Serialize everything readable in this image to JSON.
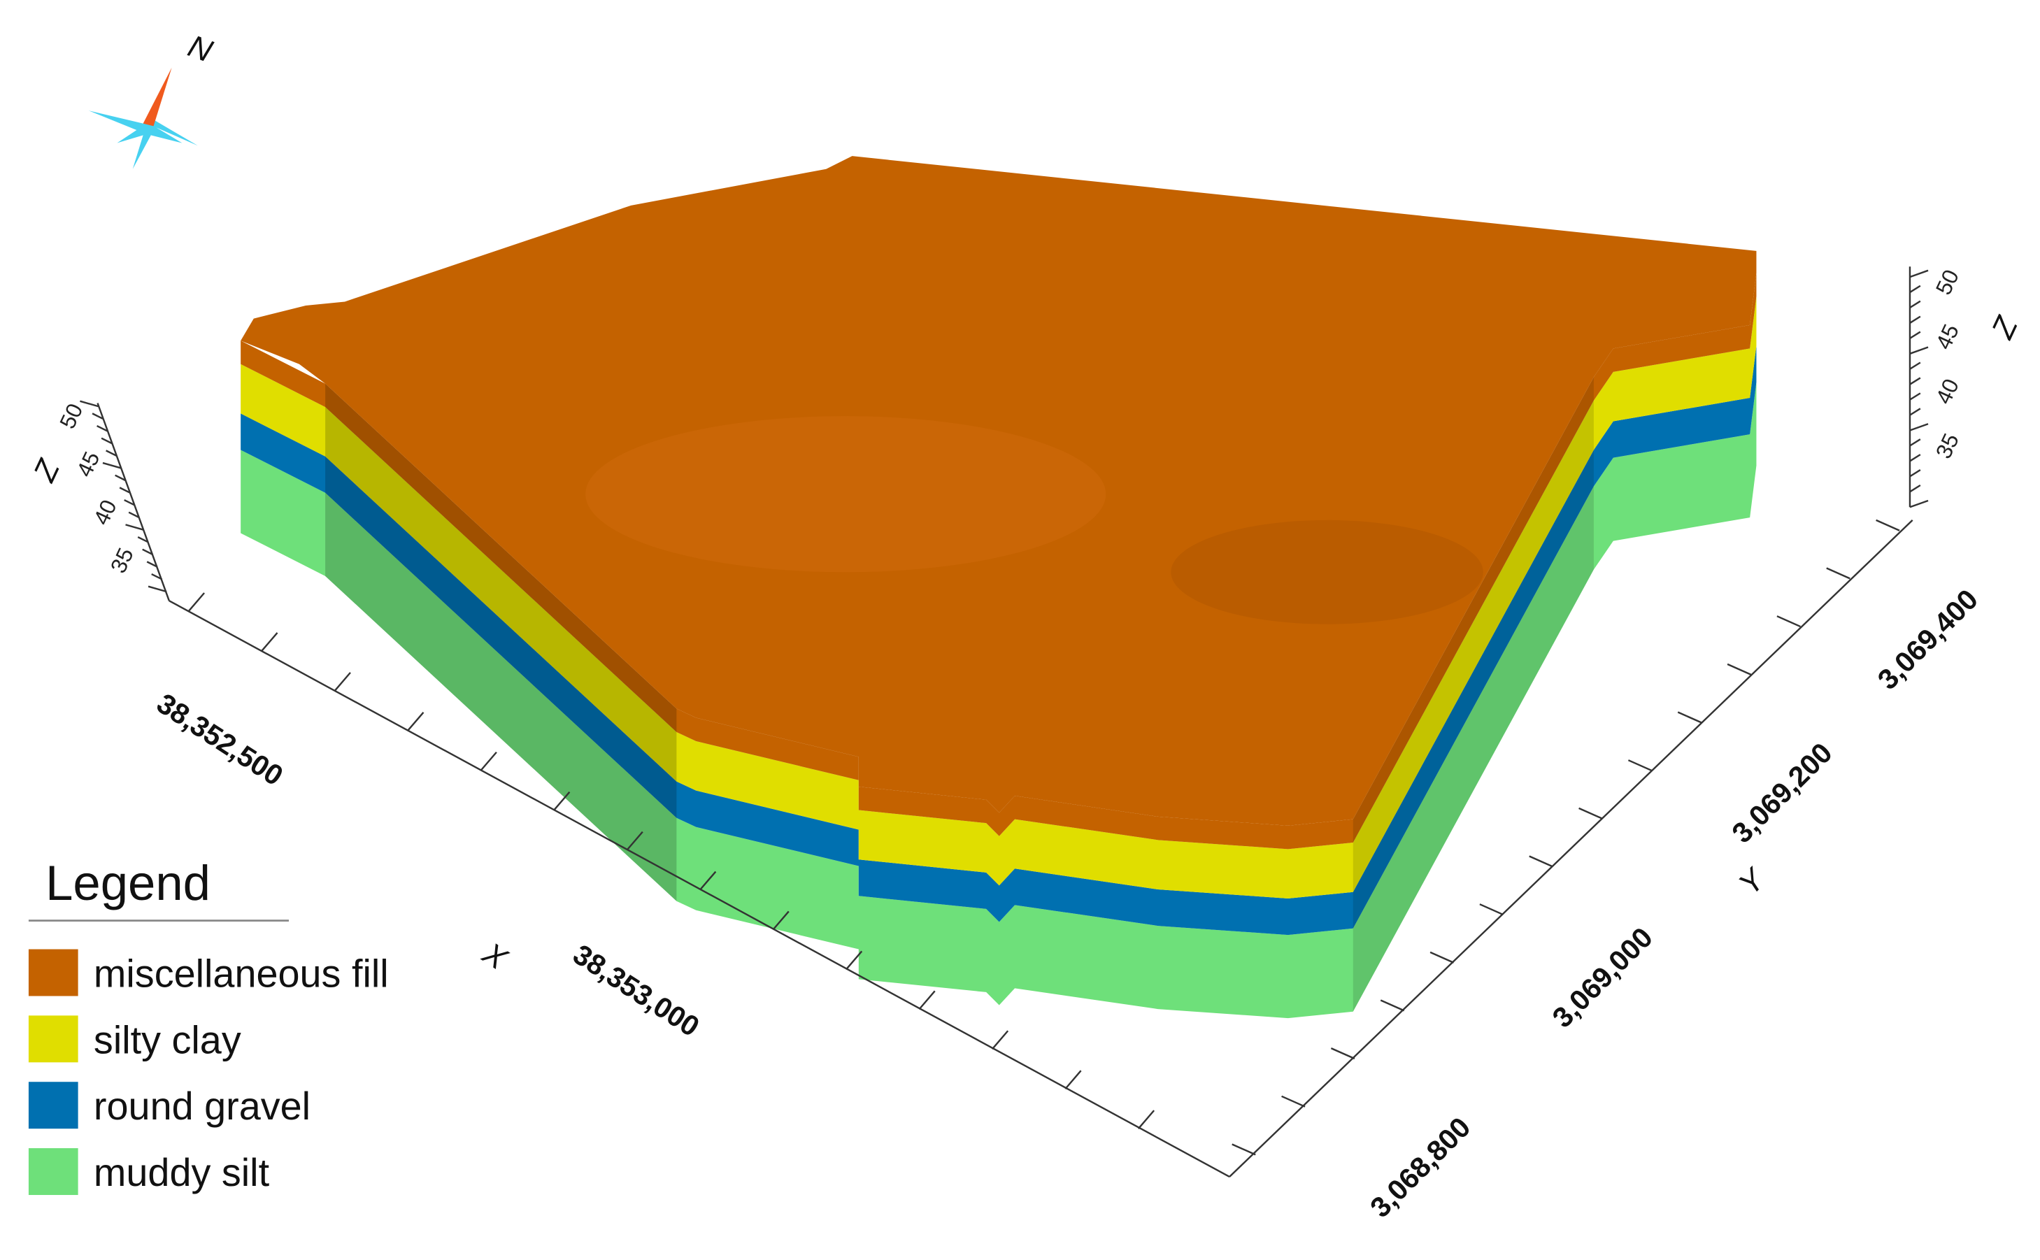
{
  "compass": {
    "label": "N"
  },
  "legend": {
    "title": "Legend",
    "items": [
      {
        "label": "miscellaneous fill",
        "color": "#c46200"
      },
      {
        "label": "silty clay",
        "color": "#e0de00"
      },
      {
        "label": "round gravel",
        "color": "#0070b0"
      },
      {
        "label": "muddy silt",
        "color": "#6ee07a"
      }
    ]
  },
  "axes": {
    "x": {
      "label": "X",
      "ticks": [
        "38,352,500",
        "38,353,000"
      ]
    },
    "y": {
      "label": "Y",
      "ticks": [
        "3,068,800",
        "3,069,000",
        "3,069,200",
        "3,069,400"
      ]
    },
    "z": {
      "label": "Z",
      "ticks": [
        "35",
        "40",
        "45",
        "50"
      ]
    }
  }
}
